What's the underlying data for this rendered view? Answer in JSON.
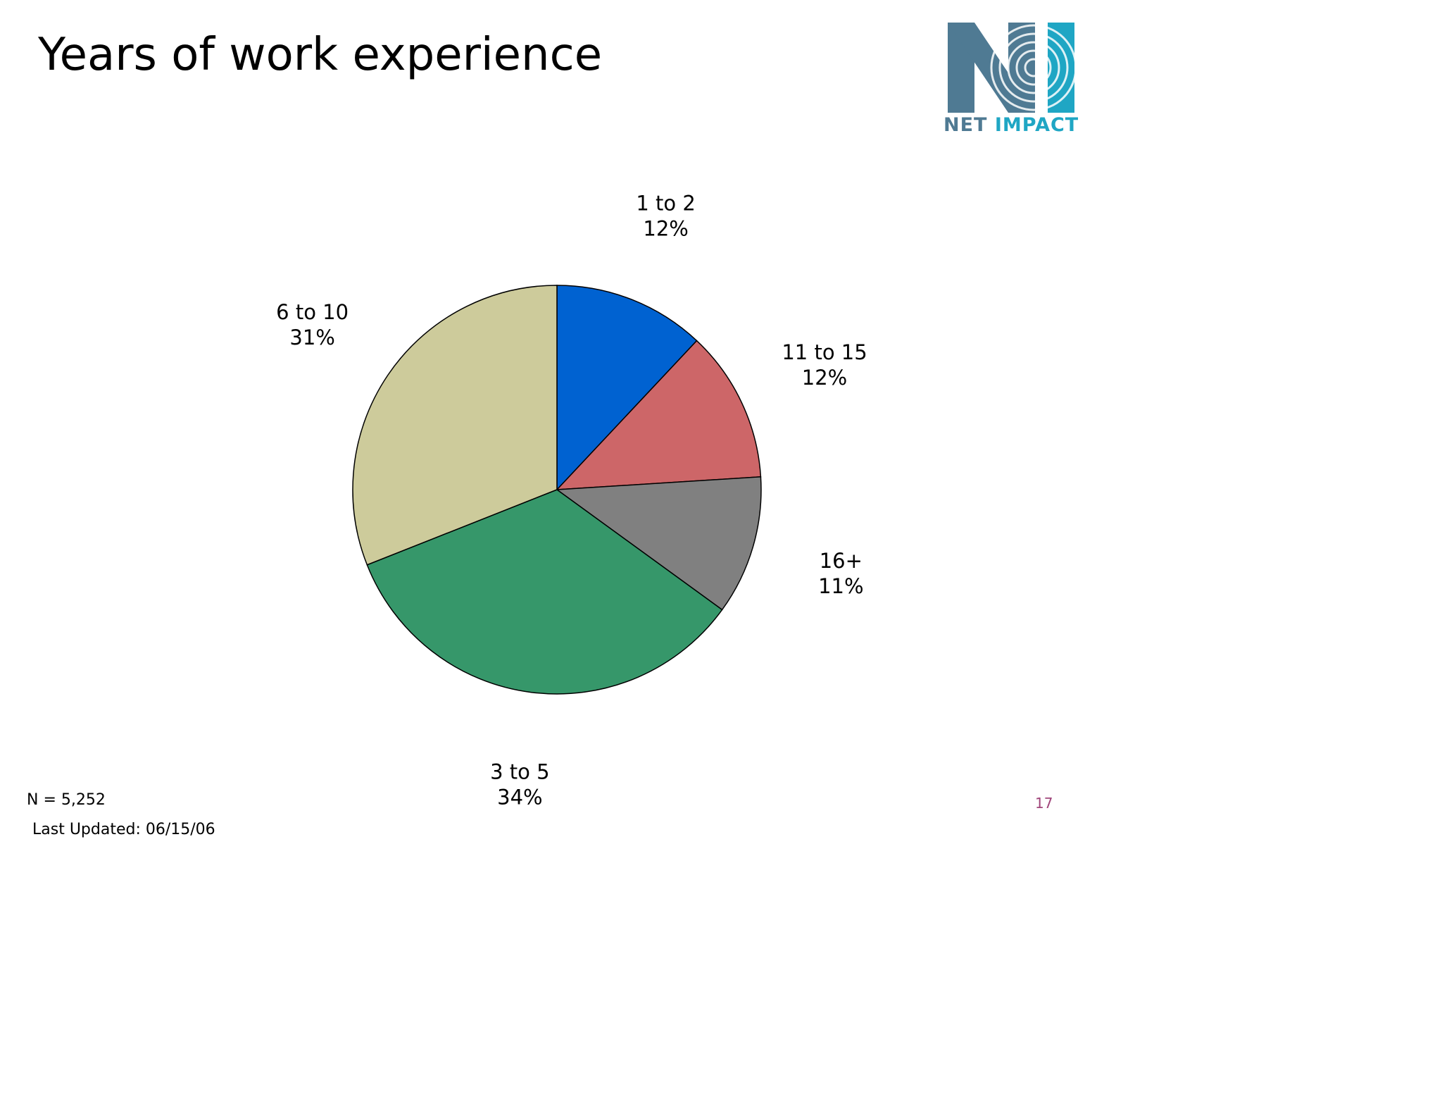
{
  "slide": {
    "title": "Years of work experience",
    "n_label": "N = 5,252",
    "last_updated": "Last Updated: 06/15/06",
    "page_number": "17"
  },
  "logo": {
    "word1": "NET",
    "word2": "IMPACT",
    "colors": {
      "n_letter": "#4f7a93",
      "i_letter": "#1fa6c4"
    }
  },
  "chart_data": {
    "type": "pie",
    "title": "Years of work experience",
    "slices": [
      {
        "label": "1 to 2",
        "value": 12,
        "value_label": "12%",
        "color": "#0062d1"
      },
      {
        "label": "11 to 15",
        "value": 12,
        "value_label": "12%",
        "color": "#cd6668"
      },
      {
        "label": "16+",
        "value": 11,
        "value_label": "11%",
        "color": "#808080"
      },
      {
        "label": "3 to 5",
        "value": 34,
        "value_label": "34%",
        "color": "#36976a"
      },
      {
        "label": "6 to 10",
        "value": 31,
        "value_label": "31%",
        "color": "#cdcb9b"
      }
    ],
    "start_angle": "12 o'clock",
    "direction": "clockwise",
    "legend": "none"
  }
}
